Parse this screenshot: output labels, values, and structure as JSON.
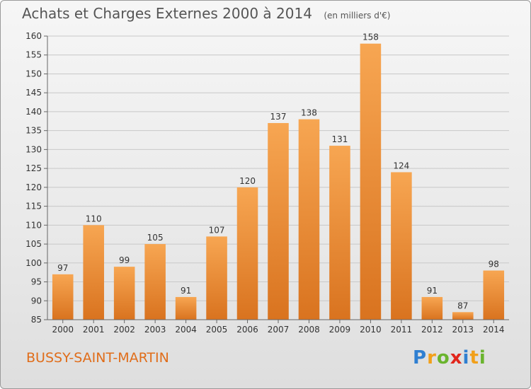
{
  "chart_data": {
    "type": "bar",
    "title": "Achats et Charges Externes 2000 à 2014",
    "subtitle": "(en milliers d'€)",
    "categories": [
      "2000",
      "2001",
      "2002",
      "2003",
      "2004",
      "2005",
      "2006",
      "2007",
      "2008",
      "2009",
      "2010",
      "2011",
      "2012",
      "2013",
      "2014"
    ],
    "values": [
      97,
      110,
      99,
      105,
      91,
      107,
      120,
      137,
      138,
      131,
      158,
      124,
      91,
      87,
      98
    ],
    "ylim": [
      85,
      160
    ],
    "yticks": [
      85,
      90,
      95,
      100,
      105,
      110,
      115,
      120,
      125,
      130,
      135,
      140,
      145,
      150,
      155,
      160
    ],
    "grid": true,
    "bar_color": "#f08a28",
    "xlabel": "",
    "ylabel": ""
  },
  "commune": "BUSSY-SAINT-MARTIN",
  "logo": {
    "letters": [
      "P",
      "r",
      "o",
      "x",
      "i",
      "t",
      "i"
    ],
    "colors": [
      "#2f7fd1",
      "#f2a01a",
      "#6ab42d",
      "#e1261c",
      "#2f7fd1",
      "#f2a01a",
      "#6ab42d"
    ]
  }
}
